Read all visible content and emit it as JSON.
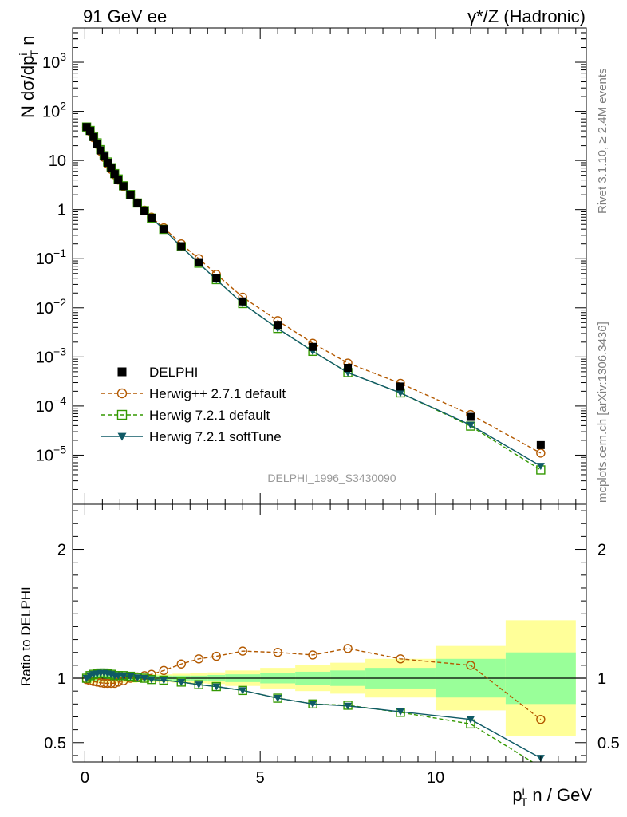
{
  "header": {
    "left": "91 GeV ee",
    "right": "γ*/Z (Hadronic)"
  },
  "side_labels": {
    "rivet": "Rivet 3.1.10, ≥ 2.4M events",
    "mcplots": "mcplots.cern.ch [arXiv:1306.3436]"
  },
  "analysis_id": "DELPHI_1996_S3430090",
  "colors": {
    "data": "#000000",
    "herwigpp": "#b35900",
    "herwig721": "#339900",
    "softtune": "#0f5a66",
    "band_green": "#99ff99",
    "band_yellow": "#ffff99"
  },
  "chart_data": [
    {
      "type": "scatter",
      "panel": "main",
      "ylabel": "N dσ/dp_T^i n",
      "yscale": "log",
      "ylim": [
        1e-06,
        5000
      ],
      "xlim": [
        -0.35,
        14.3
      ],
      "ytick_labels": [
        "10^-5",
        "10^-4",
        "10^-3",
        "10^-2",
        "10^-1",
        "1",
        "10",
        "10^2",
        "10^3"
      ],
      "x": [
        0.05,
        0.15,
        0.25,
        0.35,
        0.45,
        0.55,
        0.65,
        0.75,
        0.85,
        0.95,
        1.1,
        1.3,
        1.5,
        1.7,
        1.9,
        2.25,
        2.75,
        3.25,
        3.75,
        4.5,
        5.5,
        6.5,
        7.5,
        9.0,
        11.0,
        13.0
      ],
      "series": [
        {
          "name": "DELPHI",
          "marker": "filled-square",
          "values": [
            48,
            40,
            30,
            22,
            16,
            12,
            9,
            6.9,
            5.3,
            4.1,
            3.0,
            2.0,
            1.35,
            0.95,
            0.68,
            0.4,
            0.18,
            0.085,
            0.04,
            0.0135,
            0.0045,
            0.0016,
            0.0006,
            0.00025,
            6e-05,
            1.6e-05
          ]
        },
        {
          "name": "Herwig++ 2.7.1 default",
          "marker": "open-circle",
          "line": "dashed",
          "values": [
            47.5,
            39,
            29,
            21.3,
            15.4,
            11.5,
            8.6,
            6.6,
            5.1,
            4.0,
            2.95,
            2.0,
            1.37,
            0.97,
            0.7,
            0.425,
            0.2,
            0.1,
            0.048,
            0.0165,
            0.0055,
            0.0019,
            0.00075,
            0.00029,
            6.7e-05,
            1.1e-05
          ]
        },
        {
          "name": "Herwig 7.2.1 default",
          "marker": "open-square",
          "line": "dashed",
          "values": [
            48,
            40.8,
            30.9,
            22.8,
            16.6,
            12.5,
            9.3,
            7.1,
            5.4,
            4.2,
            3.05,
            2.03,
            1.36,
            0.95,
            0.67,
            0.395,
            0.175,
            0.081,
            0.0375,
            0.0122,
            0.0038,
            0.0013,
            0.00048,
            0.000185,
            3.9e-05,
            5e-06
          ]
        },
        {
          "name": "Herwig 7.2.1 softTune",
          "marker": "filled-triangle-down",
          "line": "solid",
          "values": [
            48,
            40.8,
            30.9,
            22.8,
            16.6,
            12.5,
            9.3,
            7.1,
            5.4,
            4.2,
            3.05,
            2.03,
            1.36,
            0.95,
            0.67,
            0.395,
            0.175,
            0.081,
            0.0375,
            0.0122,
            0.0038,
            0.0013,
            0.00048,
            0.000185,
            4.1e-05,
            6e-06
          ]
        }
      ]
    },
    {
      "type": "line",
      "panel": "ratio",
      "ylabel": "Ratio to DELPHI",
      "xlabel": "p_T^i n / GeV",
      "ylim": [
        0.35,
        2.35
      ],
      "xlim": [
        -0.35,
        14.3
      ],
      "ytick_labels": [
        "0.5",
        "1",
        "2"
      ],
      "xtick_labels": [
        "0",
        "5",
        "10"
      ],
      "x": [
        0.05,
        0.15,
        0.25,
        0.35,
        0.45,
        0.55,
        0.65,
        0.75,
        0.85,
        0.95,
        1.1,
        1.3,
        1.5,
        1.7,
        1.9,
        2.25,
        2.75,
        3.25,
        3.75,
        4.5,
        5.5,
        6.5,
        7.5,
        9.0,
        11.0,
        13.0
      ],
      "series": [
        {
          "name": "Herwig++ 2.7.1 default",
          "values": [
            0.99,
            0.98,
            0.975,
            0.97,
            0.965,
            0.96,
            0.96,
            0.96,
            0.96,
            0.97,
            0.98,
            1.0,
            1.01,
            1.02,
            1.03,
            1.06,
            1.11,
            1.15,
            1.17,
            1.21,
            1.2,
            1.18,
            1.23,
            1.15,
            1.1,
            0.68
          ]
        },
        {
          "name": "Herwig 7.2.1 default",
          "values": [
            1.0,
            1.02,
            1.03,
            1.035,
            1.04,
            1.04,
            1.035,
            1.03,
            1.02,
            1.02,
            1.02,
            1.015,
            1.005,
            1.0,
            0.99,
            0.985,
            0.97,
            0.95,
            0.935,
            0.905,
            0.845,
            0.8,
            0.79,
            0.735,
            0.645,
            0.31
          ]
        },
        {
          "name": "Herwig 7.2.1 softTune",
          "values": [
            1.0,
            1.02,
            1.03,
            1.035,
            1.04,
            1.04,
            1.035,
            1.03,
            1.02,
            1.02,
            1.02,
            1.015,
            1.005,
            1.0,
            0.99,
            0.985,
            0.97,
            0.95,
            0.935,
            0.905,
            0.845,
            0.8,
            0.785,
            0.74,
            0.68,
            0.38
          ]
        }
      ],
      "uncertainty_bands": {
        "bins": [
          [
            0,
            0.5
          ],
          [
            0.5,
            1
          ],
          [
            1,
            1.5
          ],
          [
            1.5,
            2
          ],
          [
            2,
            2.5
          ],
          [
            2.5,
            3
          ],
          [
            3,
            3.5
          ],
          [
            3.5,
            4
          ],
          [
            4,
            5
          ],
          [
            5,
            6
          ],
          [
            6,
            7
          ],
          [
            7,
            8
          ],
          [
            8,
            10
          ],
          [
            10,
            12
          ],
          [
            12,
            14
          ]
        ],
        "green_halfwidth": [
          0.025,
          0.025,
          0.025,
          0.02,
          0.02,
          0.02,
          0.02,
          0.025,
          0.03,
          0.04,
          0.05,
          0.06,
          0.08,
          0.15,
          0.2
        ],
        "yellow_halfwidth": [
          0.04,
          0.04,
          0.035,
          0.03,
          0.03,
          0.035,
          0.04,
          0.045,
          0.06,
          0.08,
          0.1,
          0.12,
          0.15,
          0.25,
          0.45
        ]
      }
    }
  ]
}
